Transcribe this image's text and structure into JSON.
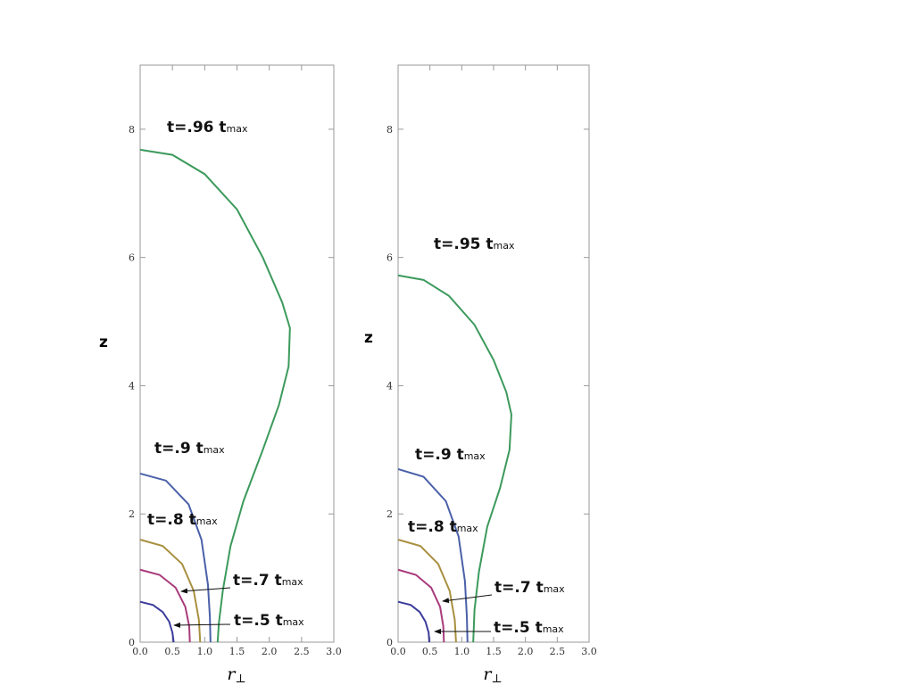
{
  "chart_data": [
    {
      "type": "line",
      "xlabel": "r",
      "xlabel_sub": "⊥",
      "ylabel": "z",
      "xlim": [
        0,
        3
      ],
      "ylim": [
        0,
        9
      ],
      "xticks": [
        {
          "value": 0,
          "label": "0.0"
        },
        {
          "value": 0.5,
          "label": "0.5"
        },
        {
          "value": 1,
          "label": "1.0"
        },
        {
          "value": 1.5,
          "label": "1.5"
        },
        {
          "value": 2,
          "label": "2.0"
        },
        {
          "value": 2.5,
          "label": "2.5"
        },
        {
          "value": 3,
          "label": "3.0"
        }
      ],
      "yticks": [
        0,
        2,
        4,
        6,
        8
      ],
      "series": [
        {
          "color": "#3c9a5c",
          "x": [
            0,
            0.5,
            1.0,
            1.5,
            1.9,
            2.2,
            2.32,
            2.3,
            2.15,
            1.9,
            1.6,
            1.4,
            1.28,
            1.22,
            1.2
          ],
          "values": [
            7.68,
            7.6,
            7.3,
            6.75,
            6.0,
            5.3,
            4.9,
            4.3,
            3.7,
            3.0,
            2.2,
            1.5,
            0.8,
            0.3,
            0
          ]
        },
        {
          "color": "#4a60a8",
          "x": [
            0,
            0.4,
            0.75,
            0.95,
            1.05,
            1.08,
            1.09
          ],
          "values": [
            2.63,
            2.52,
            2.15,
            1.6,
            0.9,
            0.4,
            0
          ]
        },
        {
          "color": "#a89040",
          "x": [
            0,
            0.35,
            0.65,
            0.83,
            0.91,
            0.93
          ],
          "values": [
            1.6,
            1.5,
            1.22,
            0.8,
            0.35,
            0
          ]
        },
        {
          "color": "#a83c7c",
          "x": [
            0,
            0.3,
            0.55,
            0.7,
            0.76,
            0.77
          ],
          "values": [
            1.13,
            1.05,
            0.85,
            0.55,
            0.25,
            0
          ]
        },
        {
          "color": "#3c3c9c",
          "x": [
            0,
            0.2,
            0.35,
            0.45,
            0.5,
            0.52
          ],
          "values": [
            0.63,
            0.58,
            0.47,
            0.32,
            0.15,
            0
          ]
        }
      ],
      "annotations": [
        {
          "text": "t=.96 t",
          "sub": "max"
        },
        {
          "text": "t=.9 t",
          "sub": "max"
        },
        {
          "text": "t=.8 t",
          "sub": "max"
        },
        {
          "text": "t=.7 t",
          "sub": "max"
        },
        {
          "text": "t=.5 t",
          "sub": "max"
        }
      ]
    },
    {
      "type": "line",
      "xlabel": "r",
      "xlabel_sub": "⊥",
      "ylabel": "z",
      "xlim": [
        0,
        3
      ],
      "ylim": [
        0,
        9
      ],
      "xticks": [
        {
          "value": 0,
          "label": "0.0"
        },
        {
          "value": 0.5,
          "label": "0.5"
        },
        {
          "value": 1,
          "label": "1.0"
        },
        {
          "value": 1.5,
          "label": "1.5"
        },
        {
          "value": 2,
          "label": "2.0"
        },
        {
          "value": 2.5,
          "label": "2.5"
        },
        {
          "value": 3,
          "label": "3.0"
        }
      ],
      "yticks": [
        0,
        2,
        4,
        6,
        8
      ],
      "series": [
        {
          "color": "#3c9a5c",
          "x": [
            0,
            0.4,
            0.8,
            1.2,
            1.5,
            1.7,
            1.78,
            1.75,
            1.6,
            1.4,
            1.27,
            1.2,
            1.18
          ],
          "values": [
            5.72,
            5.65,
            5.4,
            4.95,
            4.4,
            3.9,
            3.55,
            3.0,
            2.4,
            1.8,
            1.1,
            0.5,
            0
          ]
        },
        {
          "color": "#4a60a8",
          "x": [
            0,
            0.4,
            0.75,
            0.95,
            1.05,
            1.08,
            1.09
          ],
          "values": [
            2.7,
            2.58,
            2.2,
            1.65,
            0.95,
            0.4,
            0
          ]
        },
        {
          "color": "#a89040",
          "x": [
            0,
            0.35,
            0.63,
            0.81,
            0.89,
            0.91
          ],
          "values": [
            1.6,
            1.5,
            1.22,
            0.8,
            0.35,
            0
          ]
        },
        {
          "color": "#a83c7c",
          "x": [
            0,
            0.28,
            0.52,
            0.66,
            0.71,
            0.72
          ],
          "values": [
            1.13,
            1.05,
            0.85,
            0.55,
            0.25,
            0
          ]
        },
        {
          "color": "#3c3c9c",
          "x": [
            0,
            0.2,
            0.34,
            0.43,
            0.48,
            0.49
          ],
          "values": [
            0.63,
            0.58,
            0.47,
            0.32,
            0.15,
            0
          ]
        }
      ],
      "annotations": [
        {
          "text": "t=.95 t",
          "sub": "max"
        },
        {
          "text": "t=.9 t",
          "sub": "max"
        },
        {
          "text": "t=.8 t",
          "sub": "max"
        },
        {
          "text": "t=.7 t",
          "sub": "max"
        },
        {
          "text": "t=.5 t",
          "sub": "max"
        }
      ]
    }
  ]
}
